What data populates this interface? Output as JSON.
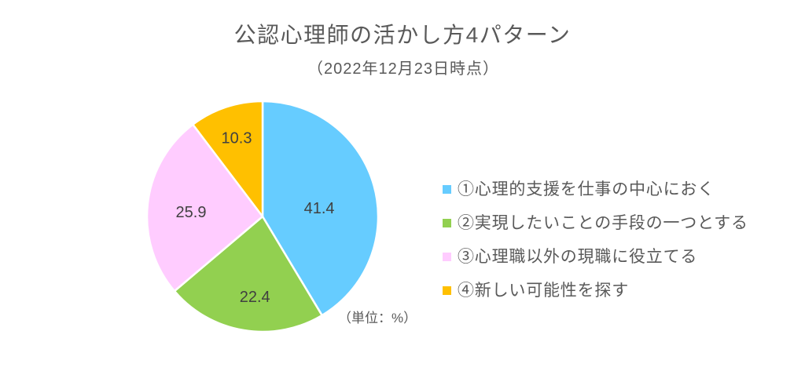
{
  "chart_data": {
    "type": "pie",
    "title": "公認心理師の活かし方4パターン",
    "subtitle": "（2022年12月23日時点）",
    "unit_note": "（単位：%）",
    "categories": [
      "①心理的支援を仕事の中心におく",
      "②実現したいことの手段の一つとする",
      "③心理職以外の現職に役立てる",
      "④新しい可能性を探す"
    ],
    "values": [
      41.4,
      22.4,
      25.9,
      10.3
    ],
    "colors": [
      "#66CCFF",
      "#92D050",
      "#FFCCFF",
      "#FFC000"
    ],
    "legend": "right"
  }
}
